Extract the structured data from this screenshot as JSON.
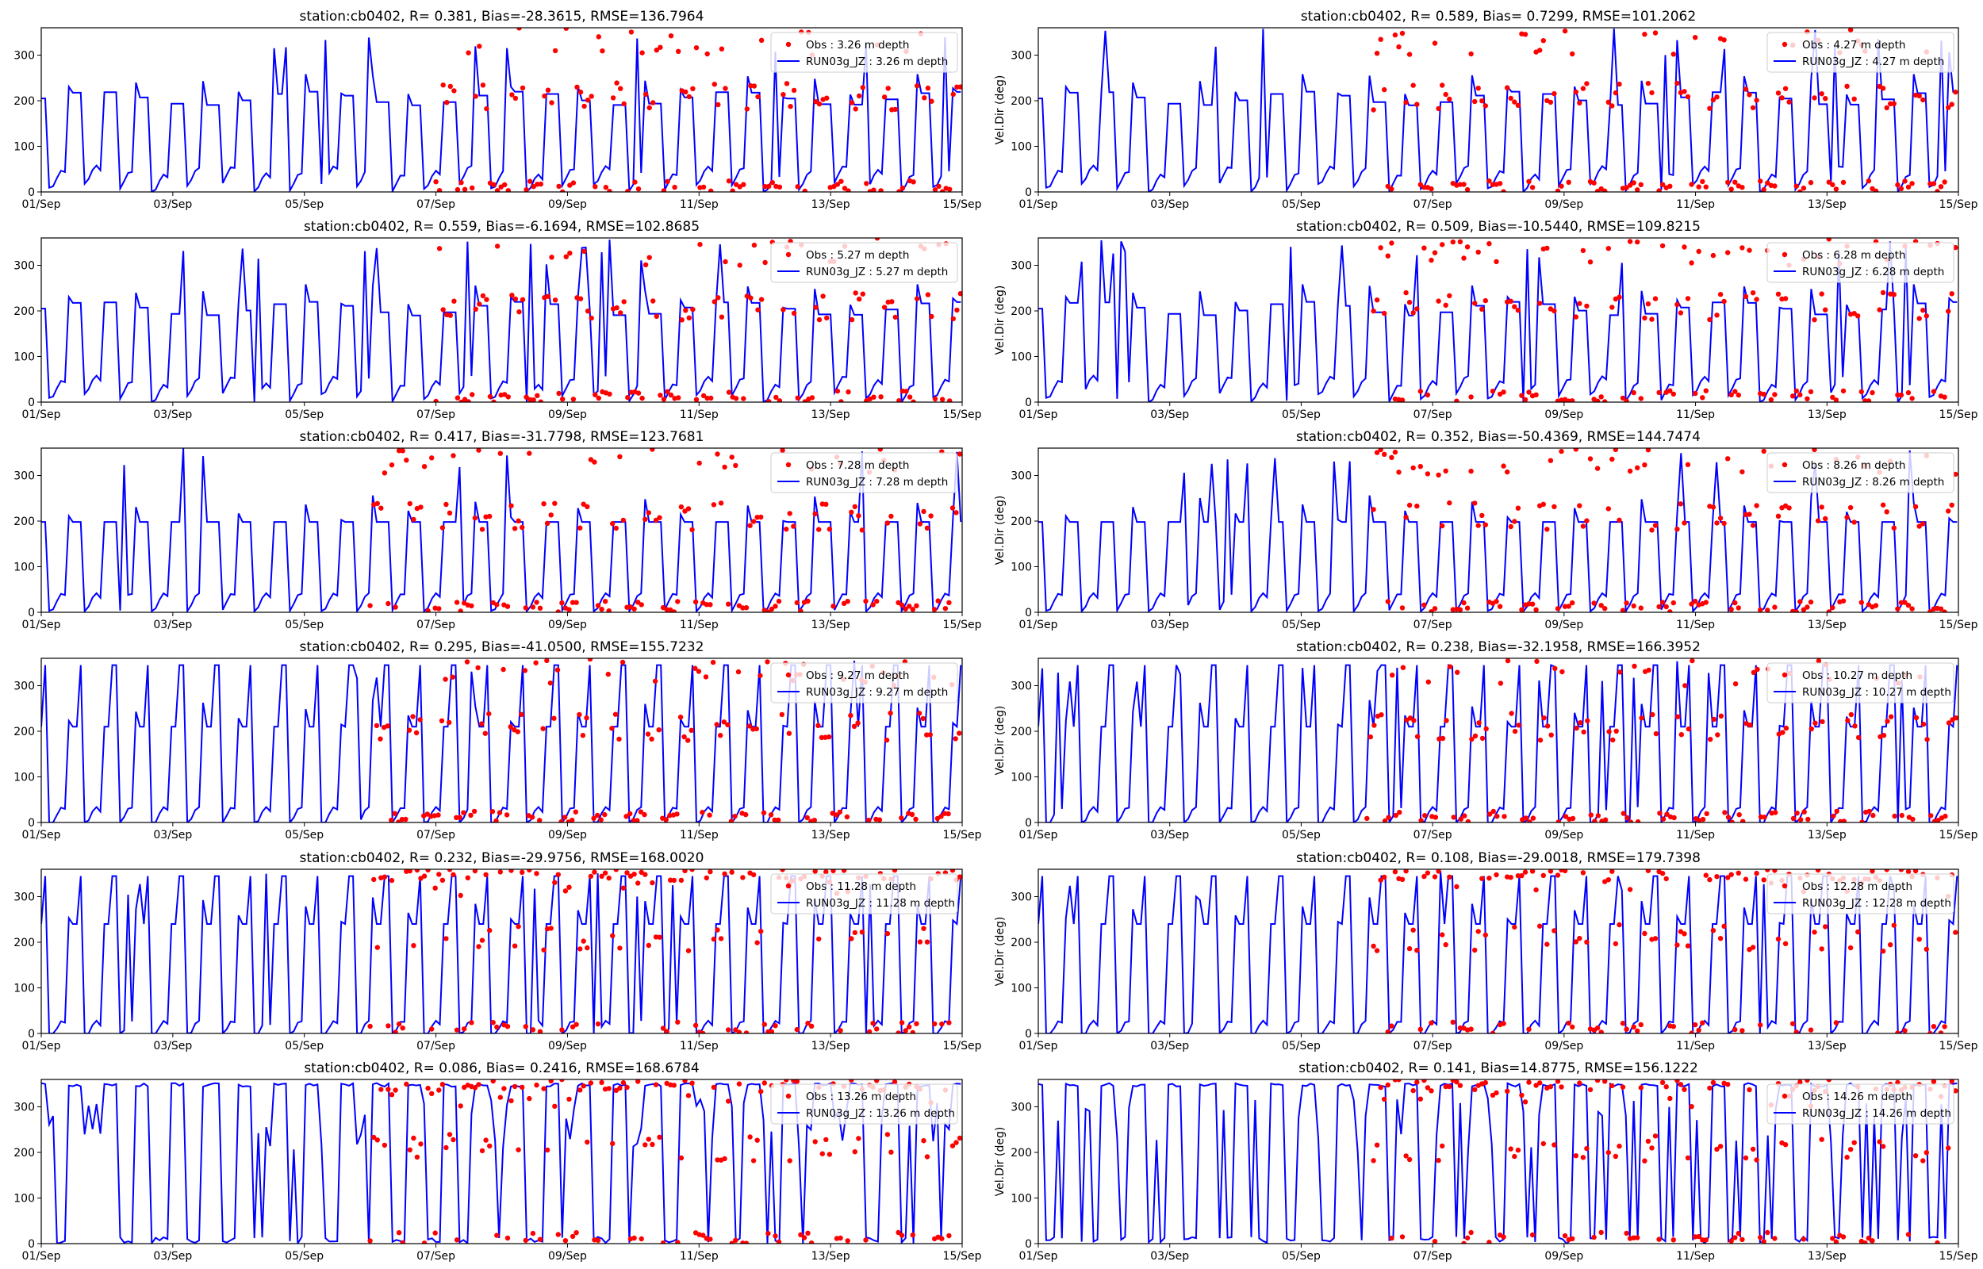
{
  "figure": {
    "y_axis_label": "Vel.Dir (deg)"
  },
  "colors": {
    "obs": "#ff0000",
    "model": "#0000ff",
    "axes": "#000000",
    "legend_border": "#cccccc"
  },
  "chart_data": [
    {
      "type": "line",
      "title": "station:cb0402, R= 0.381, Bias=-28.3615, RMSE=136.7964",
      "xlabel": "",
      "ylabel": "",
      "x_ticks": [
        "01/Sep",
        "03/Sep",
        "05/Sep",
        "07/Sep",
        "09/Sep",
        "11/Sep",
        "13/Sep",
        "15/Sep"
      ],
      "xlim": [
        0,
        14
      ],
      "ylim": [
        0,
        360
      ],
      "y_ticks": [
        0,
        100,
        200,
        300
      ],
      "series": [
        {
          "name": "Obs : 3.26 m depth",
          "kind": "scatter",
          "x_start": 6.0,
          "x_end": 14
        },
        {
          "name": "RUN03g_JZ : 3.26 m depth",
          "kind": "line",
          "x_start": 0,
          "x_end": 14
        }
      ],
      "regime": "A"
    },
    {
      "type": "line",
      "title": "station:cb0402, R= 0.589, Bias= 0.7299, RMSE=101.2062",
      "xlabel": "",
      "ylabel": "Vel.Dir (deg)",
      "x_ticks": [
        "01/Sep",
        "03/Sep",
        "05/Sep",
        "07/Sep",
        "09/Sep",
        "11/Sep",
        "13/Sep",
        "15/Sep"
      ],
      "xlim": [
        0,
        14
      ],
      "ylim": [
        0,
        360
      ],
      "y_ticks": [
        0,
        100,
        200,
        300
      ],
      "series": [
        {
          "name": "Obs : 4.27 m depth",
          "kind": "scatter",
          "x_start": 5.1,
          "x_end": 14
        },
        {
          "name": "RUN03g_JZ : 4.27 m depth",
          "kind": "line",
          "x_start": 0,
          "x_end": 14
        }
      ],
      "regime": "A"
    },
    {
      "type": "line",
      "title": "station:cb0402, R= 0.559, Bias=-6.1694, RMSE=102.8685",
      "xlabel": "",
      "ylabel": "",
      "x_ticks": [
        "01/Sep",
        "03/Sep",
        "05/Sep",
        "07/Sep",
        "09/Sep",
        "11/Sep",
        "13/Sep",
        "15/Sep"
      ],
      "xlim": [
        0,
        14
      ],
      "ylim": [
        0,
        360
      ],
      "y_ticks": [
        0,
        100,
        200,
        300
      ],
      "series": [
        {
          "name": "Obs : 5.27 m depth",
          "kind": "scatter",
          "x_start": 6.0,
          "x_end": 14
        },
        {
          "name": "RUN03g_JZ : 5.27 m depth",
          "kind": "line",
          "x_start": 0,
          "x_end": 14
        }
      ],
      "regime": "A"
    },
    {
      "type": "line",
      "title": "station:cb0402, R= 0.509, Bias=-10.5440, RMSE=109.8215",
      "xlabel": "",
      "ylabel": "Vel.Dir (deg)",
      "x_ticks": [
        "01/Sep",
        "03/Sep",
        "05/Sep",
        "07/Sep",
        "09/Sep",
        "11/Sep",
        "13/Sep",
        "15/Sep"
      ],
      "xlim": [
        0,
        14
      ],
      "ylim": [
        0,
        360
      ],
      "y_ticks": [
        0,
        100,
        200,
        300
      ],
      "series": [
        {
          "name": "Obs : 6.28 m depth",
          "kind": "scatter",
          "x_start": 5.1,
          "x_end": 14
        },
        {
          "name": "RUN03g_JZ : 6.28 m depth",
          "kind": "line",
          "x_start": 0,
          "x_end": 14
        }
      ],
      "regime": "A"
    },
    {
      "type": "line",
      "title": "station:cb0402, R= 0.417, Bias=-31.7798, RMSE=123.7681",
      "xlabel": "",
      "ylabel": "",
      "x_ticks": [
        "01/Sep",
        "03/Sep",
        "05/Sep",
        "07/Sep",
        "09/Sep",
        "11/Sep",
        "13/Sep",
        "15/Sep"
      ],
      "xlim": [
        0,
        14
      ],
      "ylim": [
        0,
        360
      ],
      "y_ticks": [
        0,
        100,
        200,
        300
      ],
      "series": [
        {
          "name": "Obs : 7.28 m depth",
          "kind": "scatter",
          "x_start": 5.0,
          "x_end": 14
        },
        {
          "name": "RUN03g_JZ : 7.28 m depth",
          "kind": "line",
          "x_start": 0,
          "x_end": 14
        }
      ],
      "regime": "B"
    },
    {
      "type": "line",
      "title": "station:cb0402, R= 0.352, Bias=-50.4369, RMSE=144.7474",
      "xlabel": "",
      "ylabel": "Vel.Dir (deg)",
      "x_ticks": [
        "01/Sep",
        "03/Sep",
        "05/Sep",
        "07/Sep",
        "09/Sep",
        "11/Sep",
        "13/Sep",
        "15/Sep"
      ],
      "xlim": [
        0,
        14
      ],
      "ylim": [
        0,
        360
      ],
      "y_ticks": [
        0,
        100,
        200,
        300
      ],
      "series": [
        {
          "name": "Obs : 8.26 m depth",
          "kind": "scatter",
          "x_start": 5.1,
          "x_end": 14
        },
        {
          "name": "RUN03g_JZ : 8.26 m depth",
          "kind": "line",
          "x_start": 0,
          "x_end": 14
        }
      ],
      "regime": "B"
    },
    {
      "type": "line",
      "title": "station:cb0402, R= 0.295, Bias=-41.0500, RMSE=155.7232",
      "xlabel": "",
      "ylabel": "",
      "x_ticks": [
        "01/Sep",
        "03/Sep",
        "05/Sep",
        "07/Sep",
        "09/Sep",
        "11/Sep",
        "13/Sep",
        "15/Sep"
      ],
      "xlim": [
        0,
        14
      ],
      "ylim": [
        0,
        360
      ],
      "y_ticks": [
        0,
        100,
        200,
        300
      ],
      "series": [
        {
          "name": "Obs : 9.27 m depth",
          "kind": "scatter",
          "x_start": 5.1,
          "x_end": 14
        },
        {
          "name": "RUN03g_JZ : 9.27 m depth",
          "kind": "line",
          "x_start": 0,
          "x_end": 14
        }
      ],
      "regime": "C"
    },
    {
      "type": "line",
      "title": "station:cb0402, R= 0.238, Bias=-32.1958, RMSE=166.3952",
      "xlabel": "",
      "ylabel": "Vel.Dir (deg)",
      "x_ticks": [
        "01/Sep",
        "03/Sep",
        "05/Sep",
        "07/Sep",
        "09/Sep",
        "11/Sep",
        "13/Sep",
        "15/Sep"
      ],
      "xlim": [
        0,
        14
      ],
      "ylim": [
        0,
        360
      ],
      "y_ticks": [
        0,
        100,
        200,
        300
      ],
      "series": [
        {
          "name": "Obs : 10.27 m depth",
          "kind": "scatter",
          "x_start": 5.0,
          "x_end": 14
        },
        {
          "name": "RUN03g_JZ : 10.27 m depth",
          "kind": "line",
          "x_start": 0,
          "x_end": 14
        }
      ],
      "regime": "C"
    },
    {
      "type": "line",
      "title": "station:cb0402, R= 0.232, Bias=-29.9756, RMSE=168.0020",
      "xlabel": "",
      "ylabel": "",
      "x_ticks": [
        "01/Sep",
        "03/Sep",
        "05/Sep",
        "07/Sep",
        "09/Sep",
        "11/Sep",
        "13/Sep",
        "15/Sep"
      ],
      "xlim": [
        0,
        14
      ],
      "ylim": [
        0,
        360
      ],
      "y_ticks": [
        0,
        100,
        200,
        300
      ],
      "series": [
        {
          "name": "Obs : 11.28 m depth",
          "kind": "scatter",
          "x_start": 5.0,
          "x_end": 14
        },
        {
          "name": "RUN03g_JZ : 11.28 m depth",
          "kind": "line",
          "x_start": 0,
          "x_end": 14
        }
      ],
      "regime": "D"
    },
    {
      "type": "line",
      "title": "station:cb0402, R= 0.108, Bias=-29.0018, RMSE=179.7398",
      "xlabel": "",
      "ylabel": "Vel.Dir (deg)",
      "x_ticks": [
        "01/Sep",
        "03/Sep",
        "05/Sep",
        "07/Sep",
        "09/Sep",
        "11/Sep",
        "13/Sep",
        "15/Sep"
      ],
      "xlim": [
        0,
        14
      ],
      "ylim": [
        0,
        360
      ],
      "y_ticks": [
        0,
        100,
        200,
        300
      ],
      "series": [
        {
          "name": "Obs : 12.28 m depth",
          "kind": "scatter",
          "x_start": 5.1,
          "x_end": 14
        },
        {
          "name": "RUN03g_JZ : 12.28 m depth",
          "kind": "line",
          "x_start": 0,
          "x_end": 14
        }
      ],
      "regime": "D"
    },
    {
      "type": "line",
      "title": "station:cb0402, R= 0.086, Bias= 0.2416, RMSE=168.6784",
      "xlabel": "",
      "ylabel": "",
      "x_ticks": [
        "01/Sep",
        "03/Sep",
        "05/Sep",
        "07/Sep",
        "09/Sep",
        "11/Sep",
        "13/Sep",
        "15/Sep"
      ],
      "xlim": [
        0,
        14
      ],
      "ylim": [
        0,
        360
      ],
      "y_ticks": [
        0,
        100,
        200,
        300
      ],
      "series": [
        {
          "name": "Obs : 13.26 m depth",
          "kind": "scatter",
          "x_start": 5.0,
          "x_end": 14
        },
        {
          "name": "RUN03g_JZ : 13.26 m depth",
          "kind": "line",
          "x_start": 0,
          "x_end": 14
        }
      ],
      "regime": "E"
    },
    {
      "type": "line",
      "title": "station:cb0402, R= 0.141, Bias=14.8775, RMSE=156.1222",
      "xlabel": "",
      "ylabel": "Vel.Dir (deg)",
      "x_ticks": [
        "01/Sep",
        "03/Sep",
        "05/Sep",
        "07/Sep",
        "09/Sep",
        "11/Sep",
        "13/Sep",
        "15/Sep"
      ],
      "xlim": [
        0,
        14
      ],
      "ylim": [
        0,
        360
      ],
      "y_ticks": [
        0,
        100,
        200,
        300
      ],
      "series": [
        {
          "name": "Obs : 14.26 m depth",
          "kind": "scatter",
          "x_start": 5.1,
          "x_end": 14
        },
        {
          "name": "RUN03g_JZ : 14.26 m depth",
          "kind": "line",
          "x_start": 0,
          "x_end": 14
        }
      ],
      "regime": "E"
    }
  ]
}
